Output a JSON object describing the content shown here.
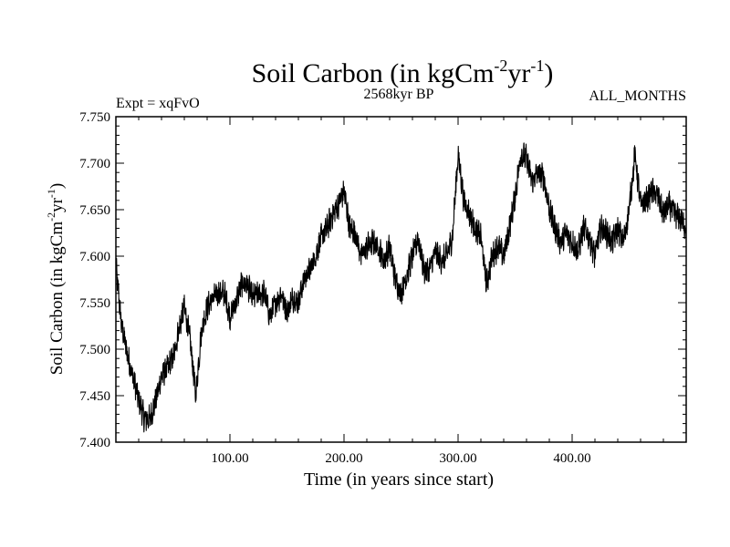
{
  "chart_data": {
    "type": "line",
    "title": {
      "prefix": "Soil Carbon (in kgCm",
      "sup1": "-2",
      "mid": "yr",
      "sup2": "-1",
      "suffix": ")"
    },
    "header_left": "Expt = xqFvO",
    "header_center": "2568kyr BP",
    "header_right": "ALL_MONTHS",
    "xlabel": "Time (in years since start)",
    "ylabel": {
      "prefix": "Soil Carbon (in kgCm",
      "sup1": "-2",
      "mid": "yr",
      "sup2": "-1",
      "suffix": ")"
    },
    "xlim": [
      0,
      500
    ],
    "ylim": [
      7.4,
      7.75
    ],
    "x_ticks": [
      100,
      200,
      300,
      400
    ],
    "x_tick_labels": [
      "100.00",
      "200.00",
      "300.00",
      "400.00"
    ],
    "y_ticks": [
      7.4,
      7.45,
      7.5,
      7.55,
      7.6,
      7.65,
      7.7,
      7.75
    ],
    "y_tick_labels": [
      "7.400",
      "7.450",
      "7.500",
      "7.550",
      "7.600",
      "7.650",
      "7.700",
      "7.750"
    ],
    "grid": false,
    "series": [
      {
        "name": "Soil Carbon",
        "color": "#000000",
        "x": [
          0,
          5,
          10,
          15,
          20,
          25,
          30,
          35,
          40,
          45,
          50,
          55,
          60,
          65,
          70,
          75,
          80,
          85,
          90,
          95,
          100,
          105,
          110,
          115,
          120,
          125,
          130,
          135,
          140,
          145,
          150,
          155,
          160,
          165,
          170,
          175,
          180,
          185,
          190,
          195,
          200,
          205,
          210,
          215,
          220,
          225,
          230,
          235,
          240,
          245,
          250,
          255,
          260,
          265,
          270,
          275,
          280,
          285,
          290,
          295,
          300,
          305,
          310,
          315,
          320,
          325,
          330,
          335,
          340,
          345,
          350,
          355,
          360,
          365,
          370,
          375,
          380,
          385,
          390,
          395,
          400,
          405,
          410,
          415,
          420,
          425,
          430,
          435,
          440,
          445,
          450,
          455,
          460,
          465,
          470,
          475,
          480,
          485,
          490,
          495,
          500
        ],
        "values": [
          7.59,
          7.525,
          7.495,
          7.47,
          7.445,
          7.425,
          7.425,
          7.445,
          7.47,
          7.48,
          7.49,
          7.52,
          7.545,
          7.51,
          7.45,
          7.52,
          7.545,
          7.555,
          7.56,
          7.56,
          7.535,
          7.55,
          7.57,
          7.57,
          7.555,
          7.56,
          7.56,
          7.535,
          7.55,
          7.56,
          7.54,
          7.555,
          7.55,
          7.575,
          7.585,
          7.6,
          7.62,
          7.63,
          7.645,
          7.655,
          7.67,
          7.63,
          7.625,
          7.6,
          7.61,
          7.615,
          7.61,
          7.595,
          7.61,
          7.575,
          7.56,
          7.58,
          7.6,
          7.62,
          7.585,
          7.585,
          7.605,
          7.595,
          7.6,
          7.62,
          7.71,
          7.66,
          7.645,
          7.63,
          7.62,
          7.57,
          7.6,
          7.61,
          7.6,
          7.63,
          7.665,
          7.71,
          7.705,
          7.68,
          7.69,
          7.685,
          7.65,
          7.63,
          7.615,
          7.625,
          7.615,
          7.605,
          7.63,
          7.62,
          7.6,
          7.63,
          7.625,
          7.615,
          7.63,
          7.615,
          7.65,
          7.71,
          7.655,
          7.66,
          7.67,
          7.665,
          7.645,
          7.655,
          7.645,
          7.64,
          7.63
        ]
      }
    ]
  }
}
